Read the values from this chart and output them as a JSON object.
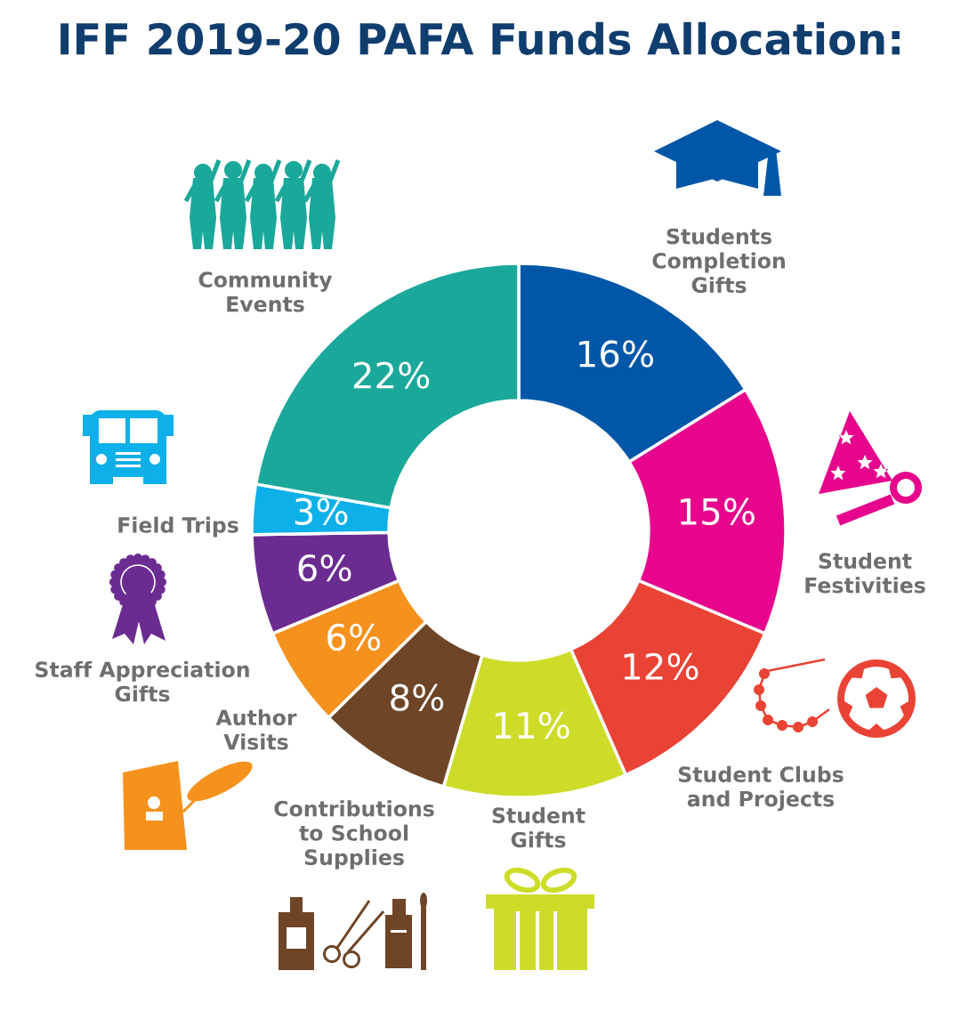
{
  "chart_data": {
    "type": "donut",
    "title": "IFF 2019-20 PAFA Funds Allocation:",
    "categories": [
      "Students\nCompletion\nGifts",
      "Student\nFestivities",
      "Student Clubs\nand Projects",
      "Student\nGifts",
      "Contributions\nto School\nSupplies",
      "Author\nVisits",
      "Staff Appreciation\nGifts",
      "Field Trips",
      "Community\nEvents"
    ],
    "values": [
      16,
      15,
      12,
      11,
      8,
      6,
      6,
      3,
      22
    ],
    "colors": [
      "#0057a8",
      "#e6058c",
      "#e94335",
      "#cddc29",
      "#6e4526",
      "#f5921e",
      "#6b2c91",
      "#0db0e8",
      "#1aa89a"
    ],
    "value_labels": [
      "16%",
      "15%",
      "12%",
      "11%",
      "8%",
      "6%",
      "6%",
      "3%",
      "22%"
    ]
  }
}
